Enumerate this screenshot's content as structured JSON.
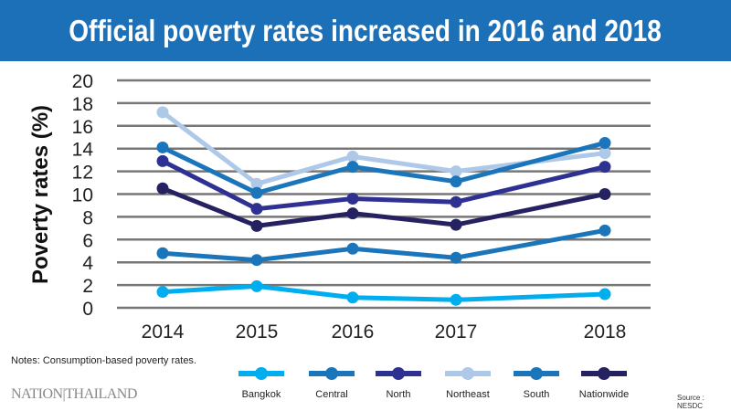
{
  "chart_data": {
    "type": "line",
    "title": "Official poverty rates increased in 2016 and 2018",
    "xlabel": "",
    "ylabel": "Poverty rates (%)",
    "x": [
      "2014",
      "2015",
      "2016",
      "2017",
      "2018"
    ],
    "ylim": [
      0,
      20
    ],
    "yticks": [
      "0",
      "2",
      "4",
      "6",
      "8",
      "10",
      "12",
      "14",
      "16",
      "18",
      "20"
    ],
    "grid": true,
    "legend_position": "bottom",
    "series": [
      {
        "name": "Bangkok",
        "color": "#00aeef",
        "values": [
          1.4,
          1.9,
          0.9,
          0.7,
          1.2
        ]
      },
      {
        "name": "Central",
        "color": "#1b75bb",
        "values": [
          4.8,
          4.2,
          5.2,
          4.4,
          6.8
        ]
      },
      {
        "name": "North",
        "color": "#2e3192",
        "values": [
          12.9,
          8.7,
          9.6,
          9.3,
          12.4
        ]
      },
      {
        "name": "Northeast",
        "color": "#aec8e8",
        "values": [
          17.2,
          10.9,
          13.3,
          12.0,
          13.6
        ]
      },
      {
        "name": "South",
        "color": "#1b75bb",
        "values": [
          14.1,
          10.1,
          12.4,
          11.1,
          14.5
        ]
      },
      {
        "name": "Nationwide",
        "color": "#262261",
        "values": [
          10.5,
          7.2,
          8.3,
          7.3,
          10.0
        ]
      }
    ]
  },
  "notes": "Notes: Consumption-based poverty rates.",
  "logo": "NATION|THAILAND",
  "source": "Source : NESDC",
  "header_color": "#1b70b8"
}
